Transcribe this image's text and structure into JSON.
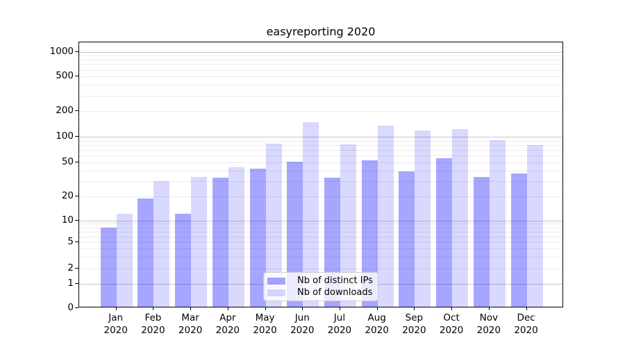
{
  "title": "easyreporting 2020",
  "chart_data": {
    "type": "bar",
    "title": "easyreporting 2020",
    "categories": [
      "Jan",
      "Feb",
      "Mar",
      "Apr",
      "May",
      "Jun",
      "Jul",
      "Aug",
      "Sep",
      "Oct",
      "Nov",
      "Dec"
    ],
    "category_year": "2020",
    "series": [
      {
        "name": "Nb of distinct IPs",
        "color": "rgba(0,0,255,0.35)",
        "values": [
          8,
          19,
          12,
          33,
          42,
          51,
          33,
          53,
          39,
          56,
          34,
          37
        ]
      },
      {
        "name": "Nb of downloads",
        "color": "rgba(0,0,255,0.15)",
        "values": [
          12,
          30,
          34,
          44,
          83,
          147,
          82,
          134,
          119,
          123,
          91,
          80
        ]
      }
    ],
    "xlabel": "",
    "ylabel": "",
    "yscale": "symlog",
    "yticks": [
      0,
      1,
      2,
      5,
      10,
      20,
      50,
      100,
      200,
      500,
      1000
    ],
    "ylim": [
      0,
      1300
    ],
    "grid": "both",
    "grid_major_color": "#c6c6c6",
    "grid_minor_color": "#ececec",
    "legend_position": "lower center",
    "legend": [
      "Nb of distinct IPs",
      "Nb of downloads"
    ]
  }
}
